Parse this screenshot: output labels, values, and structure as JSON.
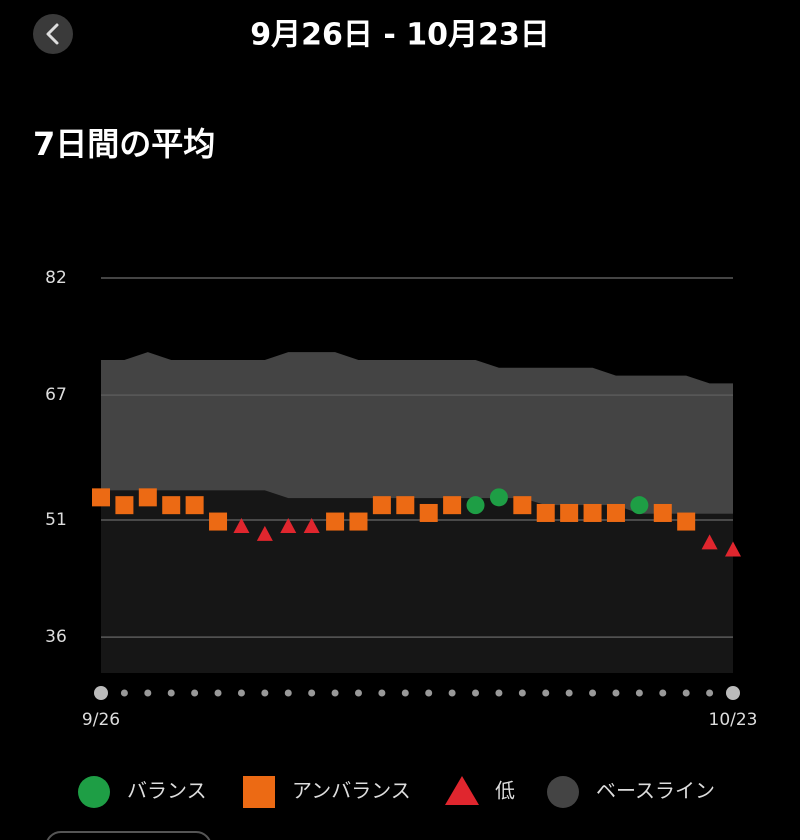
{
  "header": {
    "title": "9月26日 - 10月23日",
    "subtitle": "7日間の平均"
  },
  "chart_data": {
    "type": "scatter",
    "categories": [
      "9/26",
      null,
      null,
      null,
      null,
      null,
      null,
      null,
      null,
      null,
      null,
      null,
      null,
      null,
      null,
      null,
      null,
      null,
      null,
      null,
      null,
      null,
      null,
      null,
      null,
      null,
      null,
      "10/23"
    ],
    "ylim": [
      31.4,
      82
    ],
    "yticks": [
      36,
      51,
      67,
      82
    ],
    "grid": true,
    "series": [
      {
        "name": "バランス",
        "color": "#1e9e45",
        "marker": "circle",
        "values": [
          null,
          null,
          null,
          null,
          null,
          null,
          null,
          null,
          null,
          null,
          null,
          null,
          null,
          null,
          null,
          null,
          52.9,
          53.9,
          null,
          null,
          null,
          null,
          null,
          52.9,
          null,
          null,
          null,
          null
        ]
      },
      {
        "name": "アンバランス",
        "color": "#ec6a14",
        "marker": "square",
        "values": [
          53.9,
          52.9,
          53.9,
          52.9,
          52.9,
          50.8,
          null,
          null,
          null,
          null,
          50.8,
          50.8,
          52.9,
          52.9,
          51.9,
          52.9,
          null,
          null,
          52.9,
          51.9,
          51.9,
          51.9,
          51.9,
          null,
          51.9,
          50.8,
          null,
          null
        ]
      },
      {
        "name": "低",
        "color": "#e0262e",
        "marker": "triangle",
        "values": [
          null,
          null,
          null,
          null,
          null,
          null,
          50.1,
          49.1,
          50.1,
          50.1,
          null,
          null,
          null,
          null,
          null,
          null,
          null,
          null,
          null,
          null,
          null,
          null,
          null,
          null,
          null,
          null,
          48.0,
          47.1
        ]
      },
      {
        "name": "ベースライン",
        "color": "#444444",
        "marker": "band",
        "high": [
          71.5,
          71.5,
          72.5,
          71.5,
          71.5,
          71.5,
          71.5,
          71.5,
          72.5,
          72.5,
          72.5,
          71.5,
          71.5,
          71.5,
          71.5,
          71.5,
          71.5,
          70.5,
          70.5,
          70.5,
          70.5,
          70.5,
          69.5,
          69.5,
          69.5,
          69.5,
          68.5,
          68.5
        ],
        "low": [
          54.8,
          54.8,
          54.8,
          54.8,
          54.8,
          54.8,
          54.8,
          54.8,
          53.8,
          53.8,
          53.8,
          53.8,
          53.8,
          53.8,
          53.8,
          53.8,
          53.8,
          53.8,
          53.8,
          52.9,
          52.9,
          52.9,
          52.9,
          51.8,
          51.8,
          51.8,
          51.8,
          51.8
        ]
      }
    ]
  }
}
